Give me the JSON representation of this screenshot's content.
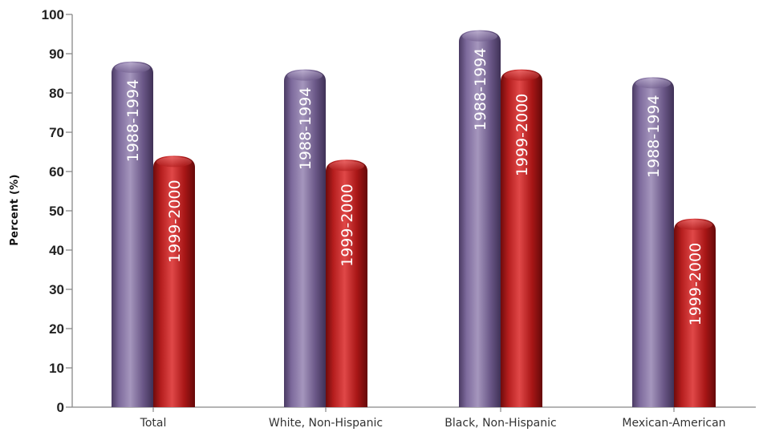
{
  "chart_data": {
    "type": "bar",
    "ylabel": "Percent (%)",
    "ylim": [
      0,
      100
    ],
    "yticks": [
      0,
      10,
      20,
      30,
      40,
      50,
      60,
      70,
      80,
      90,
      100
    ],
    "grid": false,
    "categories": [
      "Total",
      "White, Non-Hispanic",
      "Black, Non-Hispanic",
      "Mexican-American"
    ],
    "series": [
      {
        "name": "1988-1994",
        "values": [
          88,
          86,
          96,
          84
        ],
        "color": "#6e5a8c"
      },
      {
        "name": "1999-2000",
        "values": [
          64,
          63,
          86,
          48
        ],
        "color": "#a31515"
      }
    ]
  }
}
